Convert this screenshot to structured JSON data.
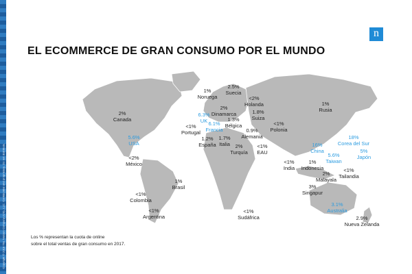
{
  "slide": {
    "title": "EL ECOMMERCE DE GRAN CONSUMO POR EL MUNDO",
    "logo_letter": "n",
    "side_copyright": "Copyright © 2018 The Nielsen Company (US), LLC. Confidential and proprietary. Do not distribute.",
    "footnote": [
      "Los % representan la cuota de online",
      "sobre el total ventas de gran consumo en 2017."
    ],
    "colors": {
      "map": "#b9b9b9",
      "highlight": "#2a9be0",
      "text": "#222222",
      "logo": "#1f8bd6"
    }
  },
  "countries": [
    {
      "value": "2%",
      "name": "Canada",
      "highlight": false
    },
    {
      "value": "5.6%",
      "name": "USA",
      "highlight": true
    },
    {
      "value": "<2%",
      "name": "México",
      "highlight": false
    },
    {
      "value": "1%",
      "name": "Brasil",
      "highlight": false
    },
    {
      "value": "<1%",
      "name": "Colombia",
      "highlight": false
    },
    {
      "value": "<1%",
      "name": "Argentina",
      "highlight": false
    },
    {
      "value": "1%",
      "name": "Noruega",
      "highlight": false
    },
    {
      "value": "2.5%",
      "name": "Suecia",
      "highlight": false
    },
    {
      "value": "2%",
      "name": "Dinamarca",
      "highlight": false
    },
    {
      "value": "6.3%",
      "name": "UK",
      "highlight": true
    },
    {
      "value": "6.1%",
      "name": "Francia",
      "highlight": true
    },
    {
      "value": "<1%",
      "name": "Portugal",
      "highlight": false
    },
    {
      "value": "1.2%",
      "name": "España",
      "highlight": false
    },
    {
      "value": "1.7%",
      "name": "Italia",
      "highlight": false
    },
    {
      "value": "<2%",
      "name": "Holanda",
      "highlight": false
    },
    {
      "value": "1.3%",
      "name": "Bélgica",
      "highlight": false
    },
    {
      "value": "1.8%",
      "name": "Suiza",
      "highlight": false
    },
    {
      "value": "0.9%",
      "name": "Alemania",
      "highlight": false
    },
    {
      "value": "2%",
      "name": "Turquía",
      "highlight": false
    },
    {
      "value": "<1%",
      "name": "Polonia",
      "highlight": false
    },
    {
      "value": "<1%",
      "name": "EAU",
      "highlight": false
    },
    {
      "value": "<1%",
      "name": "Sudáfrica",
      "highlight": false
    },
    {
      "value": "1%",
      "name": "Rusia",
      "highlight": false
    },
    {
      "value": "<1%",
      "name": "India",
      "highlight": false
    },
    {
      "value": "16%",
      "name": "China",
      "highlight": true
    },
    {
      "value": "18%",
      "name": "Corea del Sur",
      "highlight": true
    },
    {
      "value": "5%",
      "name": "Japón",
      "highlight": true
    },
    {
      "value": "5.6%",
      "name": "Taiwan",
      "highlight": true
    },
    {
      "value": "1%",
      "name": "Indonesia",
      "highlight": false
    },
    {
      "value": "2%",
      "name": "Malayala",
      "highlight": false
    },
    {
      "value": "<1%",
      "name": "Tailandia",
      "highlight": false
    },
    {
      "value": "3%",
      "name": "Singapur",
      "highlight": false
    },
    {
      "value": "3.1%",
      "name": "Australia",
      "highlight": true
    },
    {
      "value": "2.9%",
      "name": "Nueva Zelanda",
      "highlight": false
    }
  ]
}
